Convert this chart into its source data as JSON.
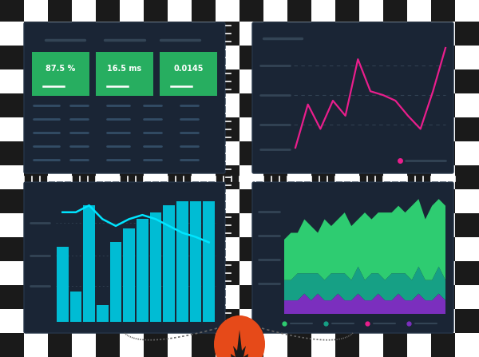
{
  "bg_color": "#ffffff",
  "panel_bg": "#1a2535",
  "panel_edge": "#263548",
  "metric_cards": [
    {
      "label": "87.5 %"
    },
    {
      "label": "16.5 ms"
    },
    {
      "label": "0.0145"
    }
  ],
  "card_color": "#27ae60",
  "line_chart_pink": {
    "y": [
      2.5,
      4.8,
      3.5,
      5.0,
      4.2,
      7.2,
      5.5,
      5.3,
      5.0,
      4.2,
      3.5,
      5.5,
      7.8
    ],
    "color": "#e91e8c",
    "linewidth": 1.6
  },
  "bar_chart": {
    "heights": [
      5.5,
      2.2,
      8.5,
      1.2,
      5.8,
      6.8,
      7.5,
      8.0,
      8.5,
      8.8,
      8.8,
      8.8
    ],
    "color": "#00bcd4",
    "line_y": [
      8.0,
      8.0,
      8.5,
      7.5,
      7.0,
      7.5,
      7.8,
      7.5,
      7.0,
      6.5,
      6.2,
      5.8
    ],
    "line_color": "#00e5ff"
  },
  "stacked_area": {
    "n": 25,
    "green_top": [
      6,
      7,
      6,
      8,
      7,
      6,
      9,
      7,
      8,
      9,
      8,
      7,
      10,
      8,
      9,
      10,
      9,
      10,
      9,
      11,
      10,
      9,
      11,
      10,
      11
    ],
    "teal_mid": [
      3,
      3,
      4,
      3,
      4,
      3,
      3,
      4,
      3,
      4,
      3,
      4,
      3,
      4,
      3,
      3,
      4,
      3,
      4,
      3,
      4,
      3,
      3,
      4,
      3
    ],
    "purple_bot": [
      2,
      2,
      2,
      3,
      2,
      3,
      2,
      2,
      3,
      2,
      2,
      3,
      2,
      2,
      3,
      2,
      2,
      3,
      2,
      2,
      3,
      2,
      2,
      3,
      2
    ],
    "green_color": "#2ecc71",
    "teal_color": "#16a085",
    "purple_color": "#7b2fbe"
  },
  "dashed_color": "#666666",
  "prom_fill": "#e64a19",
  "prom_fg": "#ffffff",
  "panels": {
    "tl": [
      0.055,
      0.175,
      0.425,
      0.76
    ],
    "tr": [
      0.51,
      0.175,
      0.94,
      0.76
    ],
    "bl": [
      0.055,
      0.53,
      0.425,
      0.94
    ],
    "br": [
      0.51,
      0.53,
      0.94,
      0.94
    ]
  }
}
